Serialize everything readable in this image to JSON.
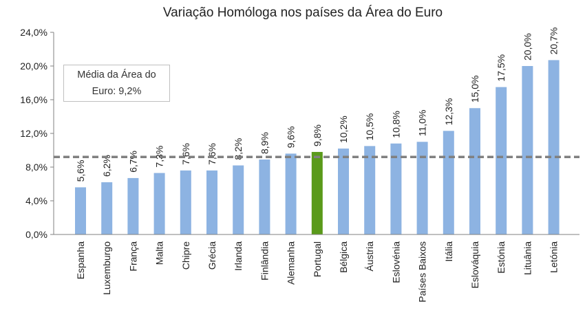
{
  "chart_data": {
    "type": "bar",
    "title": "Variação Homóloga nos países da Área do Euro",
    "xlabel": "",
    "ylabel": "",
    "ylim": [
      0,
      24
    ],
    "y_ticks": [
      "0,0%",
      "4,0%",
      "8,0%",
      "12,0%",
      "16,0%",
      "20,0%",
      "24,0%"
    ],
    "y_tick_values": [
      0,
      4,
      8,
      12,
      16,
      20,
      24
    ],
    "categories": [
      "Espanha",
      "Luxemburgo",
      "França",
      "Malta",
      "Chipre",
      "Grécia",
      "Irlanda",
      "Finlândia",
      "Alemanha",
      "Portugal",
      "Bélgica",
      "Áustria",
      "Eslovénia",
      "Países Baixos",
      "Itália",
      "Eslováquia",
      "Estónia",
      "Lituânia",
      "Letónia"
    ],
    "values": [
      5.6,
      6.2,
      6.7,
      7.3,
      7.6,
      7.6,
      8.2,
      8.9,
      9.6,
      9.8,
      10.2,
      10.5,
      10.8,
      11.0,
      12.3,
      15.0,
      17.5,
      20.0,
      20.7
    ],
    "data_labels": [
      "5,6%",
      "6,2%",
      "6,7%",
      "7,3%",
      "7,6%",
      "7,6%",
      "8,2%",
      "8,9%",
      "9,6%",
      "9,8%",
      "10,2%",
      "10,5%",
      "10,8%",
      "11,0%",
      "12,3%",
      "15,0%",
      "17,5%",
      "20,0%",
      "20,7%"
    ],
    "highlight_category": "Portugal",
    "reference_line": {
      "value": 9.2,
      "style": "dashed"
    },
    "annotation": {
      "line1": "Média da Área do",
      "line2": "Euro: 9,2%"
    },
    "colors": {
      "bar": "#8db3e2",
      "highlight": "#5a9a1a",
      "reference_line": "#808080",
      "axis": "#808080"
    },
    "grid": false,
    "legend": "none"
  }
}
